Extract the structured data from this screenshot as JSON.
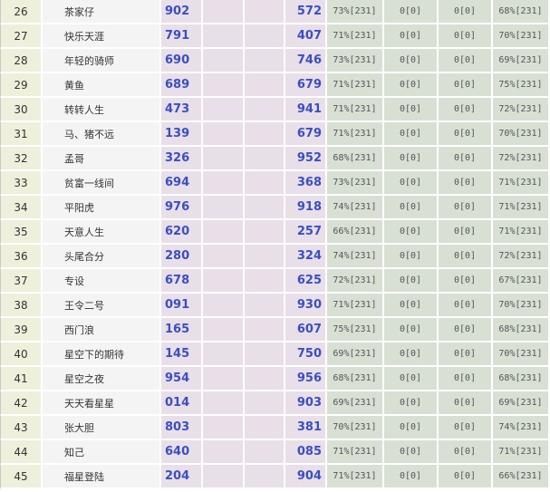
{
  "rows": [
    {
      "rank": "26",
      "name": "茶家仔",
      "a": "902",
      "b": "572",
      "p1": "73%[231]",
      "z1": "0[0]",
      "z2": "0[0]",
      "p2": "68%[231]"
    },
    {
      "rank": "27",
      "name": "快乐天涯",
      "a": "791",
      "b": "407",
      "p1": "71%[231]",
      "z1": "0[0]",
      "z2": "0[0]",
      "p2": "70%[231]"
    },
    {
      "rank": "28",
      "name": "年轻的骑师",
      "a": "690",
      "b": "746",
      "p1": "73%[231]",
      "z1": "0[0]",
      "z2": "0[0]",
      "p2": "69%[231]"
    },
    {
      "rank": "29",
      "name": "黄鱼",
      "a": "689",
      "b": "679",
      "p1": "71%[231]",
      "z1": "0[0]",
      "z2": "0[0]",
      "p2": "75%[231]"
    },
    {
      "rank": "30",
      "name": "转转人生",
      "a": "473",
      "b": "941",
      "p1": "71%[231]",
      "z1": "0[0]",
      "z2": "0[0]",
      "p2": "72%[231]"
    },
    {
      "rank": "31",
      "name": "马、猪不远",
      "a": "139",
      "b": "679",
      "p1": "71%[231]",
      "z1": "0[0]",
      "z2": "0[0]",
      "p2": "70%[231]"
    },
    {
      "rank": "32",
      "name": "孟哥",
      "a": "326",
      "b": "952",
      "p1": "68%[231]",
      "z1": "0[0]",
      "z2": "0[0]",
      "p2": "72%[231]"
    },
    {
      "rank": "33",
      "name": "贫富一线间",
      "a": "694",
      "b": "368",
      "p1": "73%[231]",
      "z1": "0[0]",
      "z2": "0[0]",
      "p2": "71%[231]"
    },
    {
      "rank": "34",
      "name": "平阳虎",
      "a": "976",
      "b": "918",
      "p1": "74%[231]",
      "z1": "0[0]",
      "z2": "0[0]",
      "p2": "71%[231]"
    },
    {
      "rank": "35",
      "name": "天意人生",
      "a": "620",
      "b": "257",
      "p1": "66%[231]",
      "z1": "0[0]",
      "z2": "0[0]",
      "p2": "71%[231]"
    },
    {
      "rank": "36",
      "name": "头尾合分",
      "a": "280",
      "b": "324",
      "p1": "74%[231]",
      "z1": "0[0]",
      "z2": "0[0]",
      "p2": "72%[231]"
    },
    {
      "rank": "37",
      "name": "专设",
      "a": "678",
      "b": "625",
      "p1": "72%[231]",
      "z1": "0[0]",
      "z2": "0[0]",
      "p2": "67%[231]"
    },
    {
      "rank": "38",
      "name": "王令二号",
      "a": "091",
      "b": "930",
      "p1": "71%[231]",
      "z1": "0[0]",
      "z2": "0[0]",
      "p2": "70%[231]"
    },
    {
      "rank": "39",
      "name": "西门浪",
      "a": "165",
      "b": "607",
      "p1": "75%[231]",
      "z1": "0[0]",
      "z2": "0[0]",
      "p2": "68%[231]"
    },
    {
      "rank": "40",
      "name": "星空下的期待",
      "a": "145",
      "b": "750",
      "p1": "69%[231]",
      "z1": "0[0]",
      "z2": "0[0]",
      "p2": "70%[231]"
    },
    {
      "rank": "41",
      "name": "星空之夜",
      "a": "954",
      "b": "956",
      "p1": "68%[231]",
      "z1": "0[0]",
      "z2": "0[0]",
      "p2": "68%[231]"
    },
    {
      "rank": "42",
      "name": "天天看星星",
      "a": "014",
      "b": "903",
      "p1": "69%[231]",
      "z1": "0[0]",
      "z2": "0[0]",
      "p2": "69%[231]"
    },
    {
      "rank": "43",
      "name": "张大胆",
      "a": "803",
      "b": "381",
      "p1": "70%[231]",
      "z1": "0[0]",
      "z2": "0[0]",
      "p2": "74%[231]"
    },
    {
      "rank": "44",
      "name": "知己",
      "a": "640",
      "b": "085",
      "p1": "71%[231]",
      "z1": "0[0]",
      "z2": "0[0]",
      "p2": "71%[231]"
    },
    {
      "rank": "45",
      "name": "福星登陆",
      "a": "204",
      "b": "904",
      "p1": "71%[231]",
      "z1": "0[0]",
      "z2": "0[0]",
      "p2": "66%[231]"
    }
  ]
}
